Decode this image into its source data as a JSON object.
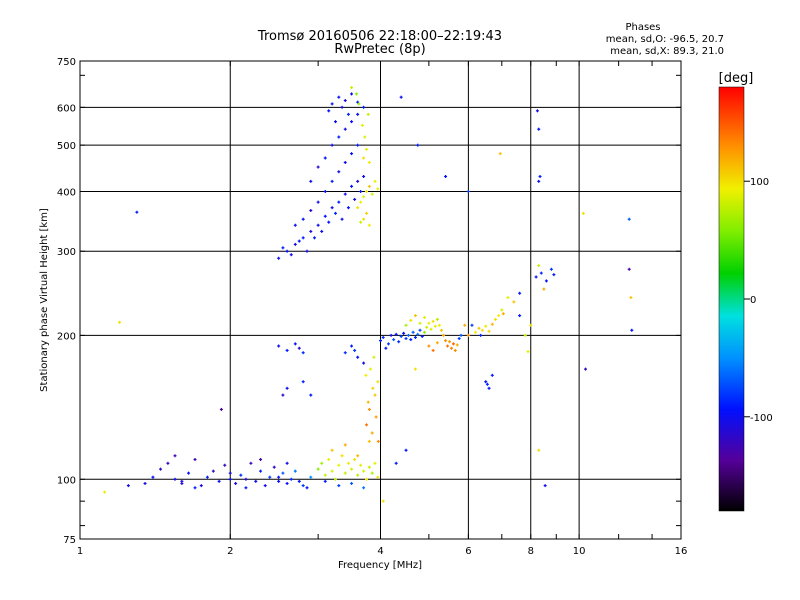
{
  "chart_data": {
    "type": "scatter",
    "title": "Tromsø 20160506 22:18:00–22:19:43",
    "subtitle": "RwPretec (8p)",
    "stats": {
      "header": "Phases",
      "line1": "mean, sd,O: -96.5, 20.7",
      "line2": "mean, sd,X:  89.3, 21.0"
    },
    "xlabel": "Frequency [MHz]",
    "ylabel": "Stationary phase Virtual Height [km]",
    "x_scale": "log",
    "y_scale": "log",
    "xlim": [
      1,
      16
    ],
    "ylim": [
      75,
      750
    ],
    "x_ticks": [
      {
        "value": 1,
        "label": "1"
      },
      {
        "value": 2,
        "label": "2"
      },
      {
        "value": 4,
        "label": "4"
      },
      {
        "value": 6,
        "label": "6"
      },
      {
        "value": 8,
        "label": "8"
      },
      {
        "value": 10,
        "label": "10"
      },
      {
        "value": 16,
        "label": "16"
      }
    ],
    "y_ticks": [
      {
        "value": 75,
        "label": "75"
      },
      {
        "value": 100,
        "label": "100"
      },
      {
        "value": 200,
        "label": "200"
      },
      {
        "value": 300,
        "label": "300"
      },
      {
        "value": 400,
        "label": "400"
      },
      {
        "value": 500,
        "label": "500"
      },
      {
        "value": 600,
        "label": "600"
      },
      {
        "value": 750,
        "label": "750"
      }
    ],
    "grid": true,
    "colorbar": {
      "label": "[deg]",
      "range": [
        -180,
        180
      ],
      "ticks": [
        {
          "value": 100,
          "label": "100"
        },
        {
          "value": 0,
          "label": "0"
        },
        {
          "value": -100,
          "label": "-100"
        }
      ]
    },
    "points": [
      [
        1.45,
        105,
        -115
      ],
      [
        1.5,
        108,
        -120
      ],
      [
        1.55,
        100,
        -100
      ],
      [
        1.6,
        98,
        -110
      ],
      [
        1.65,
        103,
        -95
      ],
      [
        1.7,
        110,
        -125
      ],
      [
        1.75,
        97,
        -105
      ],
      [
        1.8,
        101,
        -90
      ],
      [
        1.85,
        104,
        -115
      ],
      [
        1.9,
        99,
        -100
      ],
      [
        1.95,
        107,
        -120
      ],
      [
        2.0,
        100,
        -95
      ],
      [
        2.05,
        98,
        -105
      ],
      [
        2.1,
        102,
        -85
      ],
      [
        2.15,
        100,
        -110
      ],
      [
        2.2,
        108,
        -125
      ],
      [
        2.25,
        99,
        -100
      ],
      [
        2.3,
        104,
        -90
      ],
      [
        2.35,
        97,
        -105
      ],
      [
        2.4,
        101,
        -80
      ],
      [
        2.45,
        106,
        -115
      ],
      [
        2.5,
        99,
        -95
      ],
      [
        2.55,
        103,
        -70
      ],
      [
        2.6,
        98,
        -100
      ],
      [
        2.65,
        100,
        -85
      ],
      [
        2.7,
        104,
        -60
      ],
      [
        2.75,
        99,
        -95
      ],
      [
        2.8,
        97,
        -80
      ],
      [
        1.35,
        98,
        -105
      ],
      [
        1.4,
        101,
        -95
      ],
      [
        1.55,
        112,
        -125
      ],
      [
        1.7,
        96,
        -90
      ],
      [
        2.0,
        103,
        -110
      ],
      [
        2.3,
        110,
        -130
      ],
      [
        2.6,
        108,
        -105
      ],
      [
        2.9,
        101,
        -50
      ],
      [
        1.12,
        94,
        90
      ],
      [
        1.25,
        97,
        -100
      ],
      [
        1.6,
        99,
        -110
      ],
      [
        2.15,
        96,
        -90
      ],
      [
        2.5,
        101,
        -100
      ],
      [
        2.85,
        96,
        -95
      ],
      [
        3.0,
        105,
        60
      ],
      [
        3.05,
        108,
        70
      ],
      [
        3.1,
        102,
        80
      ],
      [
        3.15,
        110,
        95
      ],
      [
        3.2,
        104,
        85
      ],
      [
        3.25,
        100,
        75
      ],
      [
        3.3,
        107,
        90
      ],
      [
        3.35,
        112,
        100
      ],
      [
        3.4,
        103,
        80
      ],
      [
        3.45,
        108,
        95
      ],
      [
        3.5,
        105,
        85
      ],
      [
        3.55,
        110,
        100
      ],
      [
        3.6,
        102,
        75
      ],
      [
        3.65,
        107,
        90
      ],
      [
        3.7,
        104,
        85
      ],
      [
        3.75,
        100,
        95
      ],
      [
        3.8,
        106,
        80
      ],
      [
        3.85,
        103,
        70
      ],
      [
        3.9,
        108,
        90
      ],
      [
        3.95,
        101,
        100
      ],
      [
        3.2,
        115,
        110
      ],
      [
        3.4,
        118,
        120
      ],
      [
        3.6,
        112,
        115
      ],
      [
        3.8,
        120,
        110
      ],
      [
        3.1,
        99,
        -90
      ],
      [
        3.3,
        97,
        -80
      ],
      [
        3.5,
        98,
        -70
      ],
      [
        3.7,
        96,
        -60
      ],
      [
        3.75,
        130,
        140
      ],
      [
        3.8,
        140,
        130
      ],
      [
        3.85,
        125,
        120
      ],
      [
        3.9,
        150,
        110
      ],
      [
        3.95,
        160,
        100
      ],
      [
        3.82,
        170,
        90
      ],
      [
        3.88,
        180,
        85
      ],
      [
        3.92,
        135,
        125
      ],
      [
        3.78,
        145,
        115
      ],
      [
        3.86,
        155,
        105
      ],
      [
        3.96,
        120,
        130
      ],
      [
        3.74,
        165,
        95
      ],
      [
        4.0,
        195,
        -90
      ],
      [
        4.05,
        198,
        -85
      ],
      [
        4.1,
        188,
        -95
      ],
      [
        4.15,
        192,
        -80
      ],
      [
        4.2,
        200,
        -100
      ],
      [
        4.25,
        196,
        -70
      ],
      [
        4.3,
        201,
        -90
      ],
      [
        4.35,
        194,
        -85
      ],
      [
        4.4,
        199,
        -75
      ],
      [
        4.45,
        202,
        -95
      ],
      [
        4.5,
        197,
        -80
      ],
      [
        4.55,
        200,
        -65
      ],
      [
        4.6,
        196,
        -90
      ],
      [
        4.65,
        203,
        -70
      ],
      [
        4.7,
        198,
        -85
      ],
      [
        4.75,
        201,
        -60
      ],
      [
        4.8,
        205,
        -75
      ],
      [
        4.85,
        199,
        -90
      ],
      [
        4.9,
        203,
        60
      ],
      [
        4.95,
        208,
        80
      ],
      [
        5.0,
        212,
        95
      ],
      [
        5.05,
        206,
        85
      ],
      [
        5.1,
        214,
        100
      ],
      [
        5.15,
        209,
        90
      ],
      [
        5.2,
        216,
        75
      ],
      [
        5.25,
        210,
        95
      ],
      [
        4.6,
        215,
        100
      ],
      [
        4.7,
        220,
        110
      ],
      [
        4.8,
        212,
        85
      ],
      [
        4.9,
        218,
        90
      ],
      [
        4.5,
        210,
        70
      ],
      [
        5.3,
        205,
        110
      ],
      [
        5.35,
        200,
        120
      ],
      [
        5.4,
        195,
        130
      ],
      [
        5.45,
        190,
        140
      ],
      [
        5.5,
        194,
        125
      ],
      [
        5.55,
        188,
        135
      ],
      [
        5.6,
        192,
        145
      ],
      [
        5.65,
        186,
        130
      ],
      [
        5.7,
        191,
        120
      ],
      [
        5.75,
        197,
        -80
      ],
      [
        5.8,
        200,
        -70
      ],
      [
        5.0,
        190,
        130
      ],
      [
        5.1,
        186,
        140
      ],
      [
        5.2,
        193,
        120
      ],
      [
        6.2,
        203,
        95
      ],
      [
        6.3,
        207,
        110
      ],
      [
        6.4,
        205,
        100
      ],
      [
        6.5,
        209,
        90
      ],
      [
        6.6,
        204,
        105
      ],
      [
        6.7,
        211,
        115
      ],
      [
        6.8,
        216,
        100
      ],
      [
        6.9,
        220,
        95
      ],
      [
        7.0,
        226,
        85
      ],
      [
        7.05,
        222,
        120
      ],
      [
        6.1,
        210,
        -80
      ],
      [
        6.35,
        200,
        -90
      ],
      [
        7.2,
        240,
        90
      ],
      [
        7.4,
        235,
        110
      ],
      [
        7.6,
        245,
        -90
      ],
      [
        8.2,
        265,
        -100
      ],
      [
        8.4,
        270,
        -85
      ],
      [
        8.6,
        260,
        -95
      ],
      [
        8.8,
        275,
        -80
      ],
      [
        8.3,
        280,
        80
      ],
      [
        8.5,
        250,
        120
      ],
      [
        8.9,
        268,
        -90
      ],
      [
        6.5,
        160,
        -100
      ],
      [
        6.6,
        155,
        -95
      ],
      [
        6.7,
        165,
        -90
      ],
      [
        6.55,
        158,
        -85
      ],
      [
        2.5,
        190,
        -100
      ],
      [
        2.6,
        186,
        -90
      ],
      [
        2.7,
        192,
        -95
      ],
      [
        2.75,
        188,
        -110
      ],
      [
        2.8,
        184,
        -85
      ],
      [
        1.92,
        140,
        -140
      ],
      [
        2.55,
        150,
        -110
      ],
      [
        2.6,
        155,
        -100
      ],
      [
        2.8,
        160,
        -90
      ],
      [
        2.9,
        150,
        -95
      ],
      [
        3.5,
        190,
        -90
      ],
      [
        3.55,
        186,
        -80
      ],
      [
        3.6,
        180,
        -95
      ],
      [
        3.7,
        175,
        -100
      ],
      [
        3.4,
        184,
        -85
      ],
      [
        2.5,
        290,
        -100
      ],
      [
        2.6,
        300,
        -95
      ],
      [
        2.7,
        310,
        -105
      ],
      [
        2.8,
        320,
        -90
      ],
      [
        2.9,
        330,
        -110
      ],
      [
        3.0,
        340,
        -100
      ],
      [
        3.1,
        355,
        -95
      ],
      [
        3.2,
        370,
        -105
      ],
      [
        3.3,
        380,
        -90
      ],
      [
        3.4,
        395,
        -100
      ],
      [
        3.5,
        410,
        -95
      ],
      [
        3.6,
        420,
        -110
      ],
      [
        3.7,
        430,
        -100
      ],
      [
        2.55,
        305,
        -90
      ],
      [
        2.65,
        295,
        -100
      ],
      [
        2.75,
        315,
        -95
      ],
      [
        2.85,
        300,
        -105
      ],
      [
        2.95,
        320,
        -90
      ],
      [
        3.05,
        330,
        -100
      ],
      [
        3.15,
        345,
        -95
      ],
      [
        3.25,
        360,
        -85
      ],
      [
        3.35,
        350,
        -100
      ],
      [
        3.45,
        370,
        -95
      ],
      [
        3.55,
        385,
        -105
      ],
      [
        3.65,
        400,
        -90
      ],
      [
        2.7,
        340,
        -100
      ],
      [
        2.8,
        350,
        -95
      ],
      [
        2.9,
        365,
        -110
      ],
      [
        3.0,
        380,
        -100
      ],
      [
        3.1,
        400,
        -95
      ],
      [
        3.2,
        420,
        -90
      ],
      [
        3.3,
        440,
        -105
      ],
      [
        3.4,
        460,
        -100
      ],
      [
        3.5,
        480,
        -95
      ],
      [
        3.6,
        500,
        -90
      ],
      [
        2.9,
        420,
        -100
      ],
      [
        3.0,
        450,
        -110
      ],
      [
        3.1,
        470,
        -95
      ],
      [
        3.2,
        500,
        -100
      ],
      [
        3.3,
        520,
        -90
      ],
      [
        3.4,
        540,
        -105
      ],
      [
        3.5,
        560,
        -95
      ],
      [
        3.6,
        580,
        -100
      ],
      [
        3.7,
        600,
        -90
      ],
      [
        3.2,
        610,
        -100
      ],
      [
        3.3,
        630,
        -95
      ],
      [
        3.4,
        620,
        -110
      ],
      [
        3.5,
        640,
        -100
      ],
      [
        3.6,
        615,
        -90
      ],
      [
        3.15,
        590,
        -95
      ],
      [
        3.25,
        560,
        -100
      ],
      [
        3.35,
        600,
        -105
      ],
      [
        3.45,
        580,
        -85
      ],
      [
        3.6,
        370,
        100
      ],
      [
        3.65,
        380,
        95
      ],
      [
        3.7,
        390,
        90
      ],
      [
        3.75,
        400,
        100
      ],
      [
        3.8,
        410,
        110
      ],
      [
        3.85,
        395,
        85
      ],
      [
        3.9,
        420,
        95
      ],
      [
        3.95,
        405,
        90
      ],
      [
        3.7,
        350,
        100
      ],
      [
        3.75,
        360,
        105
      ],
      [
        3.8,
        340,
        95
      ],
      [
        3.65,
        345,
        80
      ],
      [
        3.7,
        470,
        100
      ],
      [
        3.75,
        490,
        90
      ],
      [
        3.8,
        460,
        95
      ],
      [
        3.72,
        520,
        85
      ],
      [
        3.68,
        550,
        90
      ],
      [
        3.78,
        580,
        80
      ],
      [
        3.58,
        640,
        60
      ],
      [
        3.62,
        610,
        70
      ],
      [
        3.5,
        660,
        80
      ],
      [
        4.4,
        630,
        -100
      ],
      [
        4.75,
        500,
        -90
      ],
      [
        5.4,
        430,
        -95
      ],
      [
        6.0,
        400,
        -80
      ],
      [
        6.95,
        480,
        110
      ],
      [
        8.25,
        590,
        -100
      ],
      [
        8.3,
        540,
        -95
      ],
      [
        8.35,
        430,
        -90
      ],
      [
        8.3,
        420,
        -100
      ],
      [
        8.55,
        97,
        -100
      ],
      [
        8.3,
        115,
        100
      ],
      [
        10.3,
        170,
        -120
      ],
      [
        10.2,
        360,
        100
      ],
      [
        12.6,
        275,
        -130
      ],
      [
        12.7,
        240,
        110
      ],
      [
        12.75,
        205,
        -95
      ],
      [
        12.6,
        350,
        -70
      ],
      [
        1.3,
        362,
        -90
      ],
      [
        1.2,
        213,
        100
      ],
      [
        7.8,
        200,
        80
      ],
      [
        7.9,
        185,
        90
      ],
      [
        8.0,
        210,
        100
      ],
      [
        7.6,
        220,
        -90
      ],
      [
        4.05,
        90,
        100
      ],
      [
        4.3,
        108,
        -90
      ],
      [
        4.5,
        115,
        -95
      ],
      [
        4.7,
        170,
        100
      ],
      [
        6.0,
        200,
        130
      ],
      [
        5.9,
        210,
        120
      ]
    ]
  }
}
